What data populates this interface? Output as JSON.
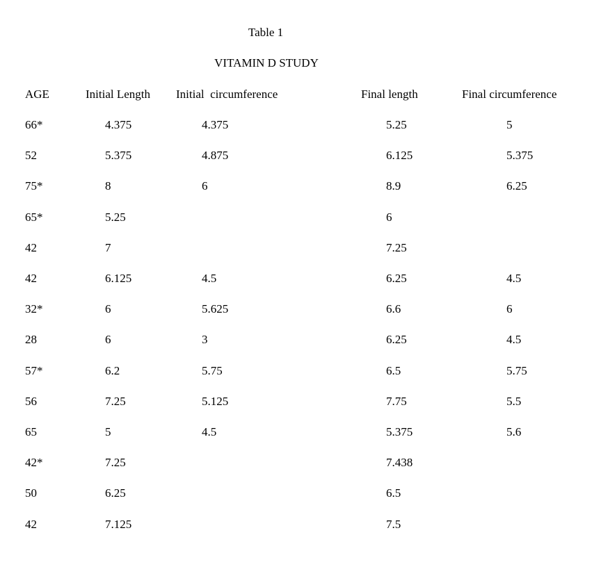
{
  "document": {
    "caption": "Table 1",
    "title": "VITAMIN D STUDY"
  },
  "table": {
    "headers": [
      "AGE",
      "Initial Length",
      "Initial  circumference",
      "Final length",
      "Final circumference"
    ],
    "rows": [
      [
        "66*",
        "4.375",
        "4.375",
        "5.25",
        "5"
      ],
      [
        "52",
        "5.375",
        "4.875",
        "6.125",
        "5.375"
      ],
      [
        "75*",
        "8",
        "6",
        "8.9",
        "6.25"
      ],
      [
        "65*",
        "5.25",
        "",
        "6",
        ""
      ],
      [
        "42",
        "7",
        "",
        "7.25",
        ""
      ],
      [
        "42",
        "6.125",
        "4.5",
        "6.25",
        "4.5"
      ],
      [
        "32*",
        "6",
        "5.625",
        "6.6",
        "6"
      ],
      [
        "28",
        "6",
        "3",
        "6.25",
        "4.5"
      ],
      [
        "57*",
        "6.2",
        "5.75",
        "6.5",
        "5.75"
      ],
      [
        "56",
        "7.25",
        "5.125",
        "7.75",
        "5.5"
      ],
      [
        "65",
        "5",
        "4.5",
        "5.375",
        "5.6"
      ],
      [
        "42*",
        "7.25",
        "",
        "7.438",
        ""
      ],
      [
        "50",
        "6.25",
        "",
        "6.5",
        ""
      ],
      [
        "42",
        "7.125",
        "",
        "7.5",
        ""
      ]
    ]
  }
}
